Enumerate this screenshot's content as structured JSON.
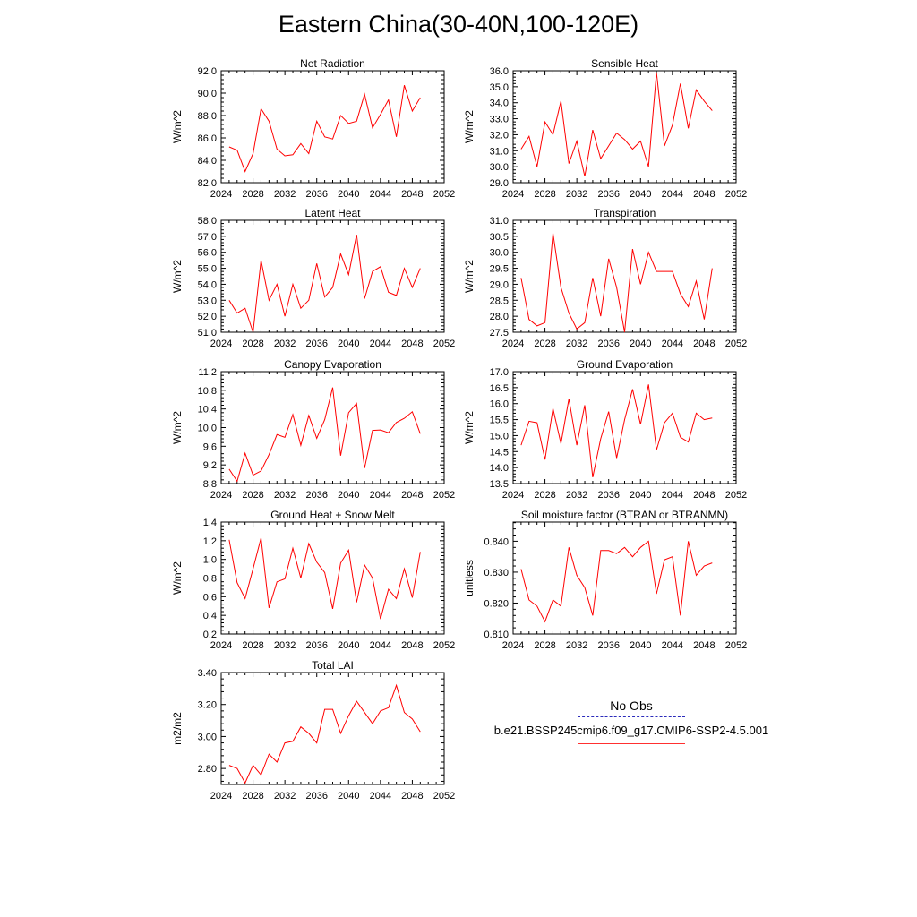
{
  "page": {
    "title": "Eastern China(30-40N,100-120E)"
  },
  "legend": {
    "obs_label": "No Obs",
    "case_label": "b.e21.BSSP245cmip6.f09_g17.CMIP6-SSP2-4.5.001",
    "obs_color": "#2b2bbb",
    "case_color": "#ff0000"
  },
  "chart_data": [
    {
      "type": "line",
      "title": "Net Radiation",
      "ylabel": "W/m^2",
      "xlim": [
        2024,
        2052
      ],
      "ylim": [
        82,
        92
      ],
      "xticks": [
        2024,
        2028,
        2032,
        2036,
        2040,
        2044,
        2048,
        2052
      ],
      "yticks": [
        82,
        84,
        86,
        88,
        90,
        92
      ],
      "ytick_labels": [
        "82.0",
        "84.0",
        "86.0",
        "88.0",
        "90.0",
        "92.0"
      ],
      "series": [
        {
          "color": "#ff0000",
          "x": [
            2025,
            2026,
            2027,
            2028,
            2029,
            2030,
            2031,
            2032,
            2033,
            2034,
            2035,
            2036,
            2037,
            2038,
            2039,
            2040,
            2041,
            2042,
            2043,
            2044,
            2045,
            2046,
            2047,
            2048,
            2049
          ],
          "y": [
            85.2,
            84.9,
            83.0,
            84.6,
            88.6,
            87.5,
            85.0,
            84.4,
            84.5,
            85.5,
            84.6,
            87.5,
            86.1,
            85.9,
            88.0,
            87.3,
            87.5,
            89.9,
            86.9,
            88.1,
            89.4,
            86.1,
            90.7,
            88.4,
            89.6
          ]
        }
      ]
    },
    {
      "type": "line",
      "title": "Sensible Heat",
      "ylabel": "W/m^2",
      "xlim": [
        2024,
        2052
      ],
      "ylim": [
        29,
        36
      ],
      "xticks": [
        2024,
        2028,
        2032,
        2036,
        2040,
        2044,
        2048,
        2052
      ],
      "yticks": [
        29,
        30,
        31,
        32,
        33,
        34,
        35,
        36
      ],
      "ytick_labels": [
        "29.0",
        "30.0",
        "31.0",
        "32.0",
        "33.0",
        "34.0",
        "35.0",
        "36.0"
      ],
      "series": [
        {
          "color": "#ff0000",
          "x": [
            2025,
            2026,
            2027,
            2028,
            2029,
            2030,
            2031,
            2032,
            2033,
            2034,
            2035,
            2036,
            2037,
            2038,
            2039,
            2040,
            2041,
            2042,
            2043,
            2044,
            2045,
            2046,
            2047,
            2048,
            2049
          ],
          "y": [
            31.1,
            31.9,
            30.0,
            32.8,
            32.0,
            34.1,
            30.2,
            31.6,
            29.4,
            32.3,
            30.5,
            31.3,
            32.1,
            31.7,
            31.1,
            31.6,
            30.0,
            35.9,
            31.3,
            32.6,
            35.2,
            32.4,
            34.8,
            34.1,
            33.5
          ]
        }
      ]
    },
    {
      "type": "line",
      "title": "Latent Heat",
      "ylabel": "W/m^2",
      "xlim": [
        2024,
        2052
      ],
      "ylim": [
        51,
        58
      ],
      "xticks": [
        2024,
        2028,
        2032,
        2036,
        2040,
        2044,
        2048,
        2052
      ],
      "yticks": [
        51,
        52,
        53,
        54,
        55,
        56,
        57,
        58
      ],
      "ytick_labels": [
        "51.0",
        "52.0",
        "53.0",
        "54.0",
        "55.0",
        "56.0",
        "57.0",
        "58.0"
      ],
      "series": [
        {
          "color": "#ff0000",
          "x": [
            2025,
            2026,
            2027,
            2028,
            2029,
            2030,
            2031,
            2032,
            2033,
            2034,
            2035,
            2036,
            2037,
            2038,
            2039,
            2040,
            2041,
            2042,
            2043,
            2044,
            2045,
            2046,
            2047,
            2048,
            2049
          ],
          "y": [
            53.0,
            52.2,
            52.5,
            51.0,
            55.5,
            53.0,
            54.0,
            52.0,
            54.0,
            52.5,
            53.0,
            55.3,
            53.2,
            53.8,
            55.9,
            54.6,
            57.1,
            53.1,
            54.8,
            55.1,
            53.5,
            53.3,
            55.0,
            53.8,
            55.0
          ]
        }
      ]
    },
    {
      "type": "line",
      "title": "Transpiration",
      "ylabel": "W/m^2",
      "xlim": [
        2024,
        2052
      ],
      "ylim": [
        27.5,
        31
      ],
      "xticks": [
        2024,
        2028,
        2032,
        2036,
        2040,
        2044,
        2048,
        2052
      ],
      "yticks": [
        27.5,
        28,
        28.5,
        29,
        29.5,
        30,
        30.5,
        31
      ],
      "ytick_labels": [
        "27.5",
        "28.0",
        "28.5",
        "29.0",
        "29.5",
        "30.0",
        "30.5",
        "31.0"
      ],
      "series": [
        {
          "color": "#ff0000",
          "x": [
            2025,
            2026,
            2027,
            2028,
            2029,
            2030,
            2031,
            2032,
            2033,
            2034,
            2035,
            2036,
            2037,
            2038,
            2039,
            2040,
            2041,
            2042,
            2043,
            2044,
            2045,
            2046,
            2047,
            2048,
            2049
          ],
          "y": [
            29.2,
            27.9,
            27.7,
            27.8,
            30.6,
            28.9,
            28.1,
            27.6,
            27.8,
            29.2,
            28.0,
            29.8,
            28.9,
            27.5,
            30.1,
            29.0,
            30.0,
            29.4,
            29.4,
            29.4,
            28.7,
            28.3,
            29.1,
            27.9,
            29.5
          ]
        }
      ]
    },
    {
      "type": "line",
      "title": "Canopy Evaporation",
      "ylabel": "W/m^2",
      "xlim": [
        2024,
        2052
      ],
      "ylim": [
        8.8,
        11.2
      ],
      "xticks": [
        2024,
        2028,
        2032,
        2036,
        2040,
        2044,
        2048,
        2052
      ],
      "yticks": [
        8.8,
        9.2,
        9.6,
        10.0,
        10.4,
        10.8,
        11.2
      ],
      "ytick_labels": [
        "8.8",
        "9.2",
        "9.6",
        "10.0",
        "10.4",
        "10.8",
        "11.2"
      ],
      "series": [
        {
          "color": "#ff0000",
          "x": [
            2025,
            2026,
            2027,
            2028,
            2029,
            2030,
            2031,
            2032,
            2033,
            2034,
            2035,
            2036,
            2037,
            2038,
            2039,
            2040,
            2041,
            2042,
            2043,
            2044,
            2045,
            2046,
            2047,
            2048,
            2049
          ],
          "y": [
            9.11,
            8.85,
            9.45,
            8.98,
            9.07,
            9.42,
            9.85,
            9.79,
            10.28,
            9.62,
            10.26,
            9.77,
            10.17,
            10.86,
            9.4,
            10.32,
            10.52,
            9.13,
            9.94,
            9.95,
            9.89,
            10.11,
            10.2,
            10.34,
            9.87
          ]
        }
      ]
    },
    {
      "type": "line",
      "title": "Ground Evaporation",
      "ylabel": "W/m^2",
      "xlim": [
        2024,
        2052
      ],
      "ylim": [
        13.5,
        17
      ],
      "xticks": [
        2024,
        2028,
        2032,
        2036,
        2040,
        2044,
        2048,
        2052
      ],
      "yticks": [
        13.5,
        14,
        14.5,
        15,
        15.5,
        16,
        16.5,
        17
      ],
      "ytick_labels": [
        "13.5",
        "14.0",
        "14.5",
        "15.0",
        "15.5",
        "16.0",
        "16.5",
        "17.0"
      ],
      "series": [
        {
          "color": "#ff0000",
          "x": [
            2025,
            2026,
            2027,
            2028,
            2029,
            2030,
            2031,
            2032,
            2033,
            2034,
            2035,
            2036,
            2037,
            2038,
            2039,
            2040,
            2041,
            2042,
            2043,
            2044,
            2045,
            2046,
            2047,
            2048,
            2049
          ],
          "y": [
            14.7,
            15.45,
            15.4,
            14.25,
            15.85,
            14.75,
            16.15,
            14.7,
            15.95,
            13.7,
            14.9,
            15.75,
            14.3,
            15.5,
            16.45,
            15.35,
            16.6,
            14.55,
            15.4,
            15.7,
            14.95,
            14.8,
            15.7,
            15.5,
            15.55
          ]
        }
      ]
    },
    {
      "type": "line",
      "title": "Ground Heat + Snow Melt",
      "ylabel": "W/m^2",
      "xlim": [
        2024,
        2052
      ],
      "ylim": [
        0.2,
        1.4
      ],
      "xticks": [
        2024,
        2028,
        2032,
        2036,
        2040,
        2044,
        2048,
        2052
      ],
      "yticks": [
        0.2,
        0.4,
        0.6,
        0.8,
        1.0,
        1.2,
        1.4
      ],
      "ytick_labels": [
        "0.2",
        "0.4",
        "0.6",
        "0.8",
        "1.0",
        "1.2",
        "1.4"
      ],
      "series": [
        {
          "color": "#ff0000",
          "x": [
            2025,
            2026,
            2027,
            2028,
            2029,
            2030,
            2031,
            2032,
            2033,
            2034,
            2035,
            2036,
            2037,
            2038,
            2039,
            2040,
            2041,
            2042,
            2043,
            2044,
            2045,
            2046,
            2047,
            2048,
            2049
          ],
          "y": [
            1.21,
            0.75,
            0.58,
            0.9,
            1.23,
            0.48,
            0.76,
            0.79,
            1.12,
            0.8,
            1.17,
            0.97,
            0.86,
            0.47,
            0.96,
            1.1,
            0.54,
            0.94,
            0.8,
            0.36,
            0.68,
            0.58,
            0.9,
            0.59,
            1.08
          ]
        }
      ]
    },
    {
      "type": "line",
      "title": "Soil moisture factor (BTRAN or BTRANMN)",
      "ylabel": "unitless",
      "xlim": [
        2024,
        2052
      ],
      "ylim": [
        0.81,
        0.8462
      ],
      "xticks": [
        2024,
        2028,
        2032,
        2036,
        2040,
        2044,
        2048,
        2052
      ],
      "yticks": [
        0.81,
        0.82,
        0.83,
        0.84
      ],
      "ytick_labels": [
        "0.810",
        "0.820",
        "0.830",
        "0.840"
      ],
      "series": [
        {
          "color": "#ff0000",
          "x": [
            2025,
            2026,
            2027,
            2028,
            2029,
            2030,
            2031,
            2032,
            2033,
            2034,
            2035,
            2036,
            2037,
            2038,
            2039,
            2040,
            2041,
            2042,
            2043,
            2044,
            2045,
            2046,
            2047,
            2048,
            2049
          ],
          "y": [
            0.831,
            0.821,
            0.819,
            0.814,
            0.821,
            0.819,
            0.838,
            0.829,
            0.825,
            0.816,
            0.837,
            0.837,
            0.836,
            0.838,
            0.835,
            0.838,
            0.84,
            0.823,
            0.834,
            0.835,
            0.816,
            0.84,
            0.829,
            0.832,
            0.833
          ]
        }
      ]
    },
    {
      "type": "line",
      "title": "Total LAI",
      "ylabel": "m2/m2",
      "xlim": [
        2024,
        2052
      ],
      "ylim": [
        2.7,
        3.4
      ],
      "xticks": [
        2024,
        2028,
        2032,
        2036,
        2040,
        2044,
        2048,
        2052
      ],
      "yticks": [
        2.8,
        3.0,
        3.2,
        3.4
      ],
      "ytick_labels": [
        "2.80",
        "3.00",
        "3.20",
        "3.40"
      ],
      "series": [
        {
          "color": "#ff0000",
          "x": [
            2025,
            2026,
            2027,
            2028,
            2029,
            2030,
            2031,
            2032,
            2033,
            2034,
            2035,
            2036,
            2037,
            2038,
            2039,
            2040,
            2041,
            2042,
            2043,
            2044,
            2045,
            2046,
            2047,
            2048,
            2049
          ],
          "y": [
            2.82,
            2.8,
            2.71,
            2.82,
            2.76,
            2.89,
            2.84,
            2.96,
            2.97,
            3.06,
            3.02,
            2.96,
            3.17,
            3.17,
            3.02,
            3.13,
            3.22,
            3.15,
            3.08,
            3.16,
            3.18,
            3.32,
            3.15,
            3.11,
            3.03
          ]
        }
      ]
    }
  ]
}
